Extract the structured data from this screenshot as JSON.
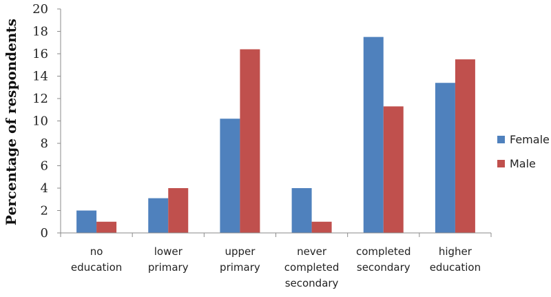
{
  "chart_data": {
    "type": "bar",
    "title": "",
    "xlabel": "",
    "ylabel": "Percentage of respondents",
    "ylim": [
      0,
      20
    ],
    "y_ticks": [
      0,
      2,
      4,
      6,
      8,
      10,
      12,
      14,
      16,
      18,
      20
    ],
    "grid": false,
    "legend_position": "right",
    "categories": [
      [
        "no",
        "education"
      ],
      [
        "lower",
        "primary"
      ],
      [
        "upper",
        "primary"
      ],
      [
        "never",
        "completed",
        "secondary"
      ],
      [
        "completed",
        "secondary"
      ],
      [
        "higher",
        "education"
      ]
    ],
    "series": [
      {
        "name": "Female",
        "color": "#4F81BD",
        "values": [
          2.0,
          3.1,
          10.2,
          4.0,
          17.5,
          13.4
        ]
      },
      {
        "name": "Male",
        "color": "#C0504D",
        "values": [
          1.0,
          4.0,
          16.4,
          1.0,
          11.3,
          15.5
        ]
      }
    ]
  }
}
